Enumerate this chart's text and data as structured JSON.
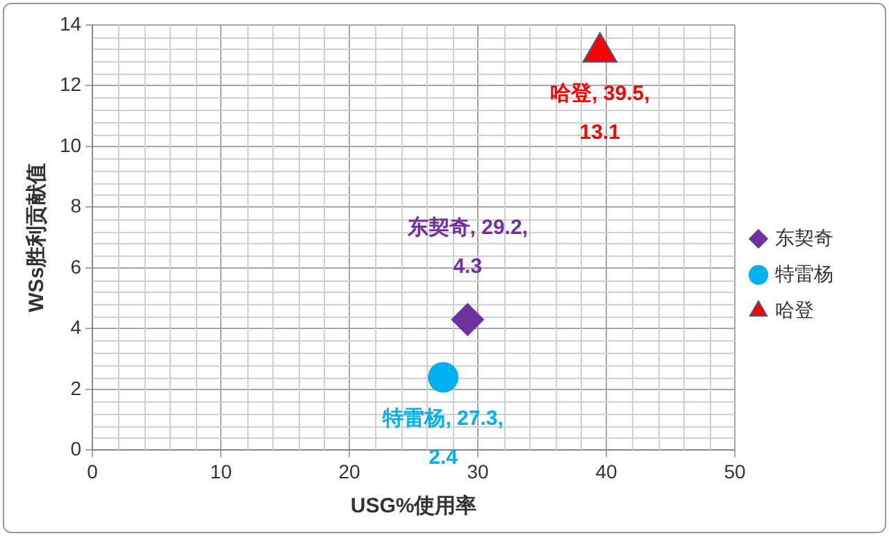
{
  "chart_data": {
    "type": "scatter",
    "xlabel": "USG%使用率",
    "ylabel": "WSs胜利贡献值",
    "xlim": [
      0,
      50
    ],
    "xticks": [
      0,
      10,
      20,
      30,
      40,
      50
    ],
    "ylim": [
      0,
      14
    ],
    "yticks": [
      0,
      2,
      4,
      6,
      8,
      10,
      12,
      14
    ],
    "grid": true,
    "legend": "right",
    "series": [
      {
        "name": "东契奇",
        "color": "#7030a0",
        "marker": "diamond",
        "x": [
          29.2
        ],
        "values": [
          4.3
        ]
      },
      {
        "name": "特雷杨",
        "color": "#00b0f0",
        "marker": "circle",
        "x": [
          27.3
        ],
        "values": [
          2.4
        ]
      },
      {
        "name": "哈登",
        "color": "#ff0000",
        "marker": "triangle",
        "x": [
          39.5
        ],
        "values": [
          13.1
        ]
      }
    ],
    "annotations": [
      {
        "text": "东契奇, 29.2, 4.3",
        "x": 29.2,
        "y": 4.3
      },
      {
        "text": "特雷杨, 27.3, 2.4",
        "x": 27.3,
        "y": 2.4
      },
      {
        "text": "哈登, 39.5, 13.1",
        "x": 39.5,
        "y": 13.1
      }
    ]
  }
}
